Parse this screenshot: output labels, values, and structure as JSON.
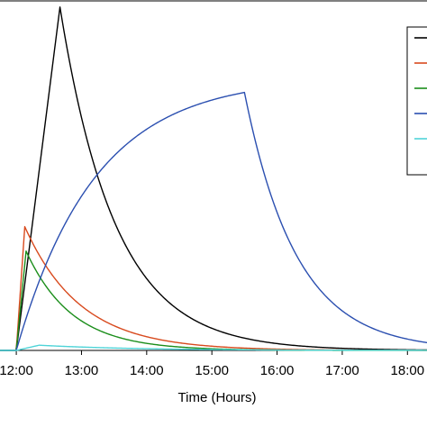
{
  "chart_data": {
    "type": "line",
    "xlabel": "Time (Hours)",
    "ylabel": "",
    "title": "",
    "x_tick_labels": [
      "12:00",
      "13:00",
      "14:00",
      "15:00",
      "16:00",
      "17:00",
      "18:00"
    ],
    "x_tick_hours": [
      12,
      13,
      14,
      15,
      16,
      17,
      18
    ],
    "xlim": [
      11.75,
      18.3
    ],
    "ylim": [
      0,
      1.0
    ],
    "grid": false,
    "legend_position": "top-right",
    "series": [
      {
        "color": "#000000",
        "kinetics": {
          "start": 12.0,
          "peak_time": 12.67,
          "peak": 0.985,
          "fall_tau_h": 0.85
        }
      },
      {
        "color": "#d84a1e",
        "kinetics": {
          "start": 12.0,
          "peak_time": 12.13,
          "peak": 0.355,
          "fall_tau_h": 0.85
        }
      },
      {
        "color": "#1b8e1b",
        "kinetics": {
          "start": 12.0,
          "peak_time": 12.15,
          "peak": 0.285,
          "fall_tau_h": 0.7
        }
      },
      {
        "color": "#2b4fb0",
        "kinetics": {
          "start": 12.0,
          "rise_tau_h": 1.2,
          "stop_time": 15.5,
          "fall_tau_h": 0.8
        }
      },
      {
        "color": "#4fd4d8",
        "kinetics": {
          "start": 12.0,
          "peak_time": 12.35,
          "peak": 0.015,
          "fall_tau_h": 1.5
        }
      }
    ]
  }
}
